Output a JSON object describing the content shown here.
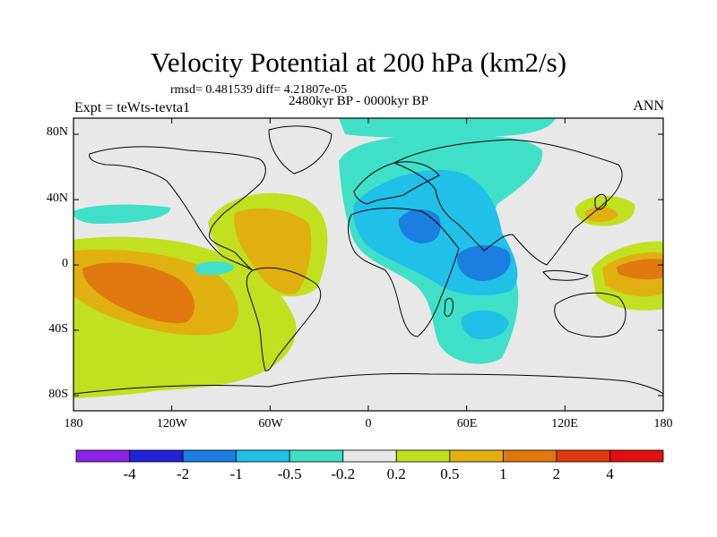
{
  "title": "Velocity Potential at 200 hPa (km2/s)",
  "stats_line": "rmsd= 0.481539  diff= 4.21807e-05",
  "expt_label": "Expt = teWts-tevta1",
  "period_label": "2480kyr BP - 0000kyr BP",
  "season_label": "ANN",
  "lat_labels": [
    "80N",
    "40N",
    "0",
    "40S",
    "80S"
  ],
  "lon_labels": [
    "180",
    "120W",
    "60W",
    "0",
    "60E",
    "120E",
    "180"
  ],
  "colorbar": {
    "labels": [
      "-4",
      "-2",
      "-1",
      "-0.5",
      "-0.2",
      "0.2",
      "0.5",
      "1",
      "2",
      "4"
    ],
    "colors": [
      "#8c22e6",
      "#2222d6",
      "#1a7fe0",
      "#20c0e8",
      "#40e0c8",
      "#e8e8e8",
      "#c0e020",
      "#e0b010",
      "#e07810",
      "#e03a10",
      "#e01010"
    ]
  },
  "colors": {
    "ocean_land_bg": "#e8e8e8",
    "neg_weak": "#40e0c8",
    "neg_mid": "#20c0e8",
    "neg_strong": "#1a7fe0",
    "pos_weak": "#c0e020",
    "pos_mid": "#e0b010",
    "pos_strong": "#e07810"
  }
}
